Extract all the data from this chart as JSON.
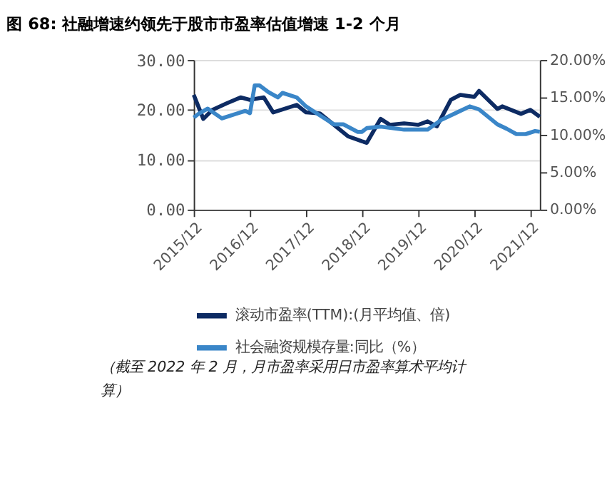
{
  "chart_data": {
    "type": "line",
    "title": "图 68: 社融增速约领先于股市市盈率估值增速 1-2 个月",
    "series": [
      {
        "name": "滚动市盈率(TTM):(月平均值、倍)",
        "color": "#0d2b63",
        "x": [
          "2015-12",
          "2016-02",
          "2016-04",
          "2016-07",
          "2016-10",
          "2016-12",
          "2017-03",
          "2017-05",
          "2017-10",
          "2017-12",
          "2018-03",
          "2018-06",
          "2018-09",
          "2018-12",
          "2019-01",
          "2019-04",
          "2019-06",
          "2019-09",
          "2019-12",
          "2020-02",
          "2020-04",
          "2020-07",
          "2020-09",
          "2020-12",
          "2021-01",
          "2021-05",
          "2021-06",
          "2021-10",
          "2021-12",
          "2022-02"
        ],
        "values": [
          23.0,
          18.2,
          20.0,
          21.3,
          22.5,
          22.0,
          22.5,
          19.5,
          21.0,
          19.5,
          19.3,
          17.0,
          14.7,
          13.7,
          13.4,
          18.2,
          17.0,
          17.3,
          17.0,
          17.7,
          16.7,
          22.0,
          23.0,
          22.6,
          23.8,
          20.2,
          20.7,
          19.2,
          20.0,
          18.6
        ]
      },
      {
        "name": "社会融资规模存量:同比（%）",
        "color": "#3a86c8",
        "axis": "y2",
        "x": [
          "2015-12",
          "2016-01",
          "2016-03",
          "2016-06",
          "2016-09",
          "2016-11",
          "2016-12",
          "2017-01",
          "2017-02",
          "2017-04",
          "2017-06",
          "2017-07",
          "2017-10",
          "2017-12",
          "2018-03",
          "2018-06",
          "2018-08",
          "2018-11",
          "2018-12",
          "2019-01",
          "2019-04",
          "2019-09",
          "2020-02",
          "2020-05",
          "2020-08",
          "2020-11",
          "2021-01",
          "2021-05",
          "2021-07",
          "2021-09",
          "2021-11",
          "2022-01",
          "2022-02"
        ],
        "values": [
          12.3,
          12.8,
          13.5,
          12.2,
          12.8,
          13.2,
          12.9,
          16.6,
          16.6,
          15.7,
          15.0,
          15.6,
          15.0,
          13.8,
          12.6,
          11.4,
          11.4,
          10.4,
          10.4,
          10.9,
          11.1,
          10.7,
          10.7,
          12.0,
          12.9,
          13.8,
          13.4,
          11.4,
          10.8,
          10.1,
          10.1,
          10.5,
          10.4
        ]
      }
    ],
    "xlim": [
      "2015-12",
      "2022-02"
    ],
    "xticks": [
      {
        "value": "2015-12",
        "label": "2015/12"
      },
      {
        "value": "2016-12",
        "label": "2016/12"
      },
      {
        "value": "2017-12",
        "label": "2017/12"
      },
      {
        "value": "2018-12",
        "label": "2018/12"
      },
      {
        "value": "2019-12",
        "label": "2019/12"
      },
      {
        "value": "2020-12",
        "label": "2020/12"
      },
      {
        "value": "2021-12",
        "label": "2021/12"
      }
    ],
    "ylim": [
      0,
      30
    ],
    "yticks": [
      {
        "value": 0,
        "label": "0.00"
      },
      {
        "value": 10,
        "label": "10.00"
      },
      {
        "value": 20,
        "label": "20.00"
      },
      {
        "value": 30,
        "label": "30.00"
      }
    ],
    "y2lim": [
      0,
      20
    ],
    "y2ticks": [
      {
        "value": 0,
        "label": "0.00%"
      },
      {
        "value": 5,
        "label": "5.00%"
      },
      {
        "value": 10,
        "label": "10.00%"
      },
      {
        "value": 15,
        "label": "15.00%"
      },
      {
        "value": 20,
        "label": "20.00%"
      }
    ],
    "grid": "y",
    "legend": "bottom",
    "marker": "none",
    "line_style": "solid",
    "annotations": [
      "（截至 2022 年 2 月，月市盈率采用日市盈率算术平均计算）"
    ]
  }
}
